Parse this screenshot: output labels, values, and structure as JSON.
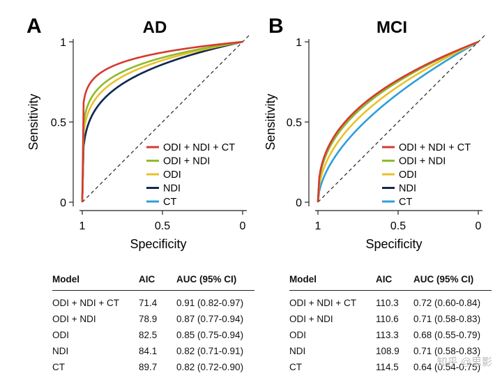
{
  "chart_data": [
    {
      "type": "line",
      "panel_letter": "A",
      "title": "AD",
      "xlabel": "Specificity",
      "ylabel": "Sensitivity",
      "xlim": [
        1,
        0
      ],
      "ylim": [
        0,
        1
      ],
      "x_ticks": [
        "1",
        "0.5",
        "0"
      ],
      "y_ticks": [
        "0",
        "0.5",
        "1"
      ],
      "legend_position": "bottom-right",
      "series": [
        {
          "name": "ODI + NDI + CT",
          "color": "#d63a2f",
          "auc": 0.91
        },
        {
          "name": "ODI + NDI",
          "color": "#8fba2a",
          "auc": 0.87
        },
        {
          "name": "ODI",
          "color": "#e8c12a",
          "auc": 0.85
        },
        {
          "name": "NDI",
          "color": "#14284e",
          "auc": 0.82
        },
        {
          "name": "CT",
          "color": "#2f9ed8",
          "auc": 0.82
        }
      ]
    },
    {
      "type": "line",
      "panel_letter": "B",
      "title": "MCI",
      "xlabel": "Specificity",
      "ylabel": "Sensitivity",
      "xlim": [
        1,
        0
      ],
      "ylim": [
        0,
        1
      ],
      "x_ticks": [
        "1",
        "0.5",
        "0"
      ],
      "y_ticks": [
        "0",
        "0.5",
        "1"
      ],
      "legend_position": "bottom-right",
      "series": [
        {
          "name": "ODI + NDI + CT",
          "color": "#d63a2f",
          "auc": 0.72
        },
        {
          "name": "ODI + NDI",
          "color": "#8fba2a",
          "auc": 0.71
        },
        {
          "name": "ODI",
          "color": "#e8c12a",
          "auc": 0.68
        },
        {
          "name": "NDI",
          "color": "#14284e",
          "auc": 0.71
        },
        {
          "name": "CT",
          "color": "#2f9ed8",
          "auc": 0.64
        }
      ]
    }
  ],
  "tables": {
    "A": {
      "headers": [
        "Model",
        "AIC",
        "AUC (95% CI)"
      ],
      "rows": [
        [
          "ODI + NDI + CT",
          "71.4",
          "0.91 (0.82-0.97)"
        ],
        [
          "ODI + NDI",
          "78.9",
          "0.87 (0.77-0.94)"
        ],
        [
          "ODI",
          "82.5",
          "0.85 (0.75-0.94)"
        ],
        [
          "NDI",
          "84.1",
          "0.82 (0.71-0.91)"
        ],
        [
          "CT",
          "89.7",
          "0.82 (0.72-0.90)"
        ]
      ]
    },
    "B": {
      "headers": [
        "Model",
        "AIC",
        "AUC (95% CI)"
      ],
      "rows": [
        [
          "ODI + NDI + CT",
          "110.3",
          "0.72 (0.60-0.84)"
        ],
        [
          "ODI + NDI",
          "110.6",
          "0.71 (0.58-0.83)"
        ],
        [
          "ODI",
          "113.3",
          "0.68 (0.55-0.79)"
        ],
        [
          "NDI",
          "108.9",
          "0.71 (0.58-0.83)"
        ],
        [
          "CT",
          "114.5",
          "0.64 (0.54-0.75)"
        ]
      ]
    }
  },
  "watermark": "知乎 @思影"
}
